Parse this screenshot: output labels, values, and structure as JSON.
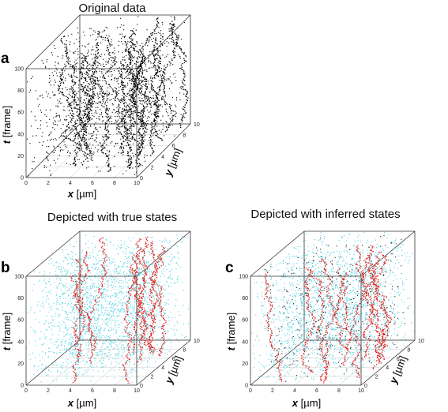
{
  "panels": [
    {
      "id": "a",
      "letter": "a",
      "title": "Original data",
      "ylabel_var": "t",
      "ylabel_unit": " [frame]",
      "xlabel_var": "x",
      "xlabel_unit": " [µm]",
      "zlabel_var": "y",
      "zlabel_unit": " [µm]",
      "x_ticks": [
        "0",
        "2",
        "4",
        "6",
        "8",
        "10"
      ],
      "z_ticks": [
        "0",
        "2",
        "4",
        "6",
        "8",
        "10"
      ],
      "y_ticks": [
        "0",
        "20",
        "40",
        "60",
        "80",
        "100"
      ]
    },
    {
      "id": "b",
      "letter": "b",
      "title": "Depicted with true states",
      "ylabel_var": "t",
      "ylabel_unit": " [frame]",
      "xlabel_var": "x",
      "xlabel_unit": " [µm]",
      "zlabel_var": "y",
      "zlabel_unit": " [µm]",
      "x_ticks": [
        "0",
        "2",
        "4",
        "6",
        "8",
        "10"
      ],
      "z_ticks": [
        "0",
        "2",
        "4",
        "6",
        "8",
        "10"
      ],
      "y_ticks": [
        "0",
        "20",
        "40",
        "60",
        "80",
        "100"
      ]
    },
    {
      "id": "c",
      "letter": "c",
      "title": "Depicted with inferred states",
      "ylabel_var": "t",
      "ylabel_unit": " [frame]",
      "xlabel_var": "x",
      "xlabel_unit": " [µm]",
      "zlabel_var": "y",
      "zlabel_unit": " [µm]",
      "x_ticks": [
        "0",
        "2",
        "4",
        "6",
        "8",
        "10"
      ],
      "z_ticks": [
        "0",
        "2",
        "4",
        "6",
        "8",
        "10"
      ],
      "y_ticks": [
        "0",
        "20",
        "40",
        "60",
        "80",
        "100"
      ]
    }
  ],
  "chart_data": [
    {
      "type": "scatter",
      "panel": "a",
      "title": "Original data",
      "xlabel": "x [µm]",
      "ylabel": "t [frame]",
      "zlabel": "y [µm]",
      "xlim": [
        0,
        10
      ],
      "zlim": [
        0,
        10
      ],
      "ylim": [
        0,
        100
      ],
      "series": [
        {
          "color": "#000000",
          "tracks": 18,
          "points_per_track": 100,
          "background_points": 1400
        }
      ]
    },
    {
      "type": "scatter",
      "panel": "b",
      "title": "Depicted with true states",
      "xlabel": "x [µm]",
      "ylabel": "t [frame]",
      "zlabel": "y [µm]",
      "xlim": [
        0,
        10
      ],
      "zlim": [
        0,
        10
      ],
      "ylim": [
        0,
        100
      ],
      "series": [
        {
          "color": "#e0201c",
          "tracks": 12,
          "points_per_track": 100
        },
        {
          "color": "#5ad2e2",
          "points": 2200
        }
      ]
    },
    {
      "type": "scatter",
      "panel": "c",
      "title": "Depicted with inferred states",
      "xlabel": "x [µm]",
      "ylabel": "t [frame]",
      "zlabel": "y [µm]",
      "xlim": [
        0,
        10
      ],
      "zlim": [
        0,
        10
      ],
      "ylim": [
        0,
        100
      ],
      "series": [
        {
          "color": "#e0201c",
          "tracks": 12,
          "points_per_track": 100
        },
        {
          "color": "#5ad2e2",
          "points": 2000
        },
        {
          "color": "#222222",
          "points": 350
        }
      ]
    }
  ]
}
